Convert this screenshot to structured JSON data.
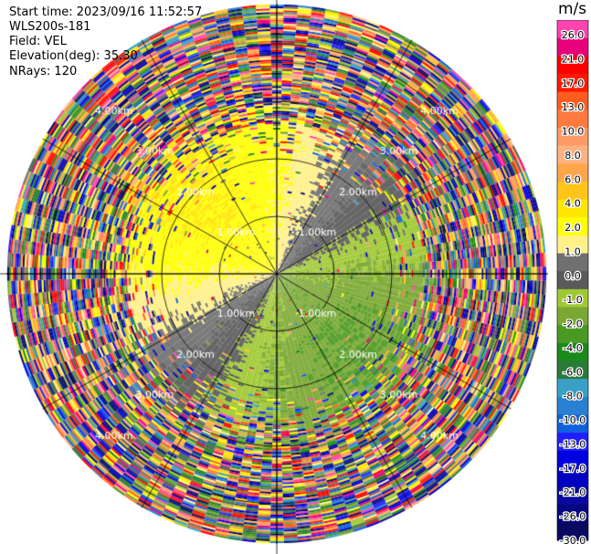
{
  "header": {
    "start_time": "Start time: 2023/09/16 11:52:57",
    "instrument": "WLS200s-181",
    "field": "Field: VEL",
    "elevation": "Elevation(deg): 35.30",
    "nrays": "NRays: 120"
  },
  "chart_data": {
    "type": "heatmap",
    "projection": "polar-ppi",
    "field": "VEL",
    "units": "m/s",
    "nrays": 120,
    "elevation_deg": 35.3,
    "range_rings_km": [
      1.0,
      2.0,
      3.0,
      4.0
    ],
    "ring_labels": [
      "1.00km",
      "2.00km",
      "3.00km",
      "4.00km"
    ],
    "spokes_deg": [
      0,
      30,
      60,
      90,
      120,
      150,
      180,
      210,
      240,
      270,
      300,
      330
    ],
    "max_range_km": 4.7,
    "velocity_pattern": {
      "toward_azimuth_deg": 135,
      "radial_speed_ms": 5.5,
      "noise_beyond_km": 2.6
    },
    "colorbar": {
      "title": "m/s",
      "ticks": [
        "26.0",
        "21.0",
        "17.0",
        "13.0",
        "10.0",
        "8.0",
        "6.0",
        "4.0",
        "2.0",
        "1.0",
        "0.0",
        "-1.0",
        "-2.0",
        "-4.0",
        "-6.0",
        "-8.0",
        "-10.0",
        "-13.0",
        "-17.0",
        "-21.0",
        "-26.0",
        "-30.0"
      ],
      "colors": [
        "#ff44b0",
        "#e8007a",
        "#ff0000",
        "#ff1a00",
        "#ff5c1f",
        "#ff7a3c",
        "#ff9a66",
        "#ffb280",
        "#ffa54a",
        "#ffc41a",
        "#ffe600",
        "#ffff00",
        "#fff088",
        "#707070",
        "#5a5a5a",
        "#a0c832",
        "#7aa832",
        "#4a9a22",
        "#1a8a1a",
        "#2a7a3a",
        "#3aa0c8",
        "#2a80d0",
        "#1060e0",
        "#2020ff",
        "#0000e0",
        "#0000c0",
        "#0a0aa0",
        "#060680",
        "#0a0a60"
      ]
    }
  }
}
